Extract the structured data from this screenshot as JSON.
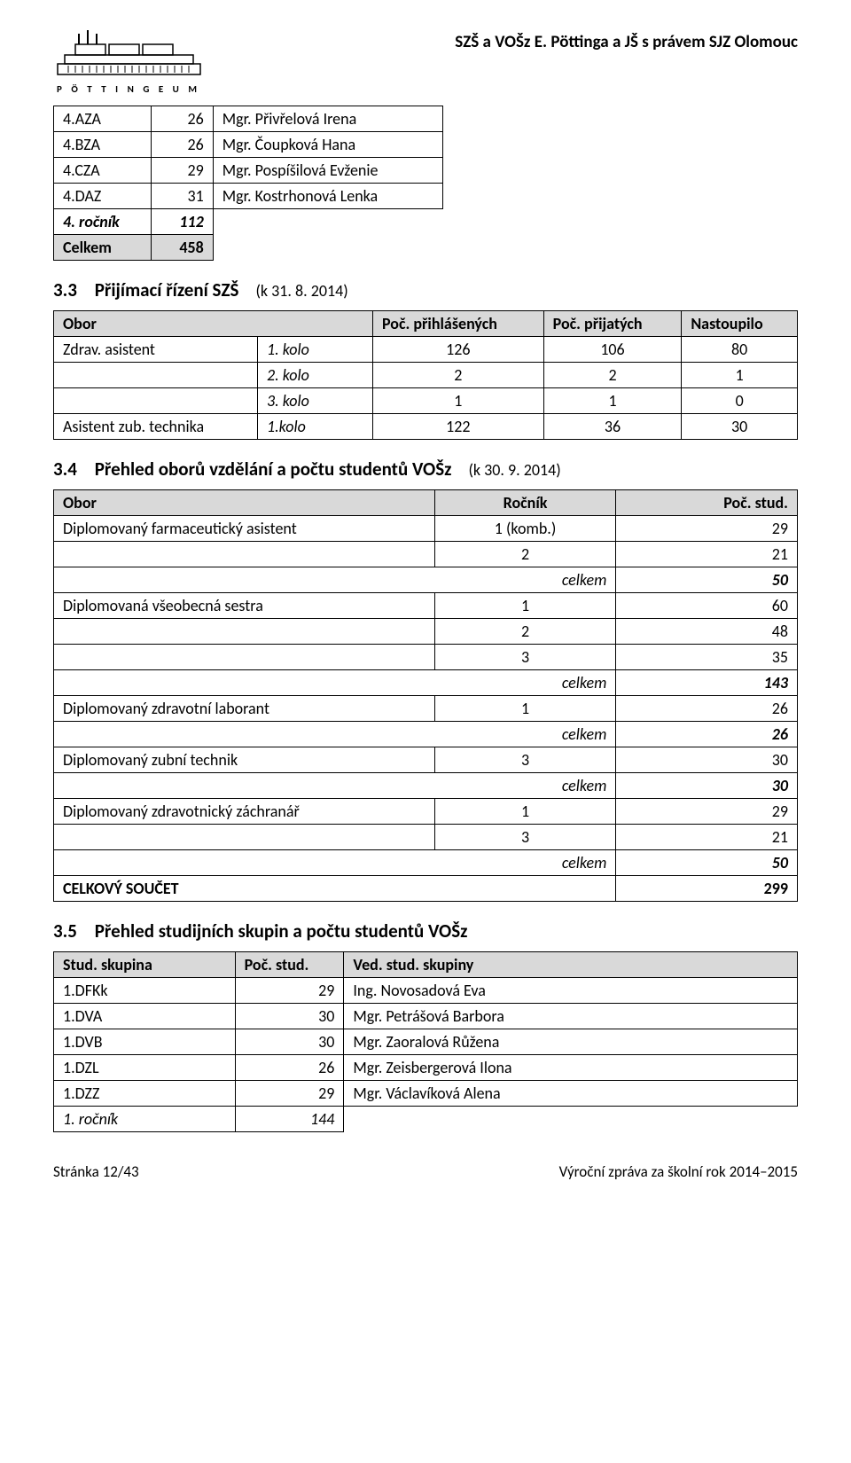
{
  "header": {
    "institution": "SZŠ a VOŠz E. Pöttinga a JŠ s právem SJZ Olomouc",
    "logo_caption": "P Ö T T I N G E U M"
  },
  "classes_table": {
    "rows": [
      {
        "code": "4.AZA",
        "n": "26",
        "teacher": "Mgr. Přivřelová Irena"
      },
      {
        "code": "4.BZA",
        "n": "26",
        "teacher": "Mgr. Čoupková Hana"
      },
      {
        "code": "4.CZA",
        "n": "29",
        "teacher": "Mgr. Pospíšilová Evženie"
      },
      {
        "code": "4.DAZ",
        "n": "31",
        "teacher": "Mgr. Kostrhonová Lenka"
      }
    ],
    "subtotal": {
      "label": "4. ročník",
      "n": "112"
    },
    "total": {
      "label": "Celkem",
      "n": "458"
    }
  },
  "section33": {
    "num": "3.3",
    "title": "Přijímací řízení SZŠ",
    "paren": "(k 31. 8. 2014)"
  },
  "admit": {
    "head": {
      "obor": "Obor",
      "prih": "Poč. přihlášených",
      "prij": "Poč. přijatých",
      "nast": "Nastoupilo"
    },
    "rows": [
      {
        "lbl": "Zdrav. asistent",
        "sub": "1. kolo",
        "a": "126",
        "b": "106",
        "c": "80"
      },
      {
        "lbl": "",
        "sub": "2. kolo",
        "a": "2",
        "b": "2",
        "c": "1"
      },
      {
        "lbl": "",
        "sub": "3. kolo",
        "a": "1",
        "b": "1",
        "c": "0"
      },
      {
        "lbl": "Asistent zub. technika",
        "sub": "1.kolo",
        "a": "122",
        "b": "36",
        "c": "30"
      }
    ]
  },
  "section34": {
    "num": "3.4",
    "title": "Přehled oborů vzdělání a počtu studentů VOŠz",
    "paren": "(k 30. 9. 2014)"
  },
  "obor": {
    "head": {
      "obor": "Obor",
      "rocnik": "Ročník",
      "stud": "Poč. stud."
    },
    "celkem_label": "celkem",
    "groups": [
      {
        "name": "Diplomovaný farmaceutický asistent",
        "rows": [
          {
            "r": "1 (komb.)",
            "s": "29"
          },
          {
            "r": "2",
            "s": "21"
          }
        ],
        "sum": "50"
      },
      {
        "name": "Diplomovaná všeobecná sestra",
        "rows": [
          {
            "r": "1",
            "s": "60"
          },
          {
            "r": "2",
            "s": "48"
          },
          {
            "r": "3",
            "s": "35"
          }
        ],
        "sum": "143"
      },
      {
        "name": "Diplomovaný zdravotní laborant",
        "rows": [
          {
            "r": "1",
            "s": "26"
          }
        ],
        "sum": "26"
      },
      {
        "name": "Diplomovaný zubní technik",
        "rows": [
          {
            "r": "3",
            "s": "30"
          }
        ],
        "sum": "30"
      },
      {
        "name": "Diplomovaný zdravotnický záchranář",
        "rows": [
          {
            "r": "1",
            "s": "29"
          },
          {
            "r": "3",
            "s": "21"
          }
        ],
        "sum": "50"
      }
    ],
    "total": {
      "label": "CELKOVÝ SOUČET",
      "val": "299"
    }
  },
  "section35": {
    "num": "3.5",
    "title": "Přehled studijních skupin a počtu studentů VOŠz"
  },
  "grp": {
    "head": {
      "a": "Stud. skupina",
      "b": "Poč. stud.",
      "c": "Ved. stud. skupiny"
    },
    "rows": [
      {
        "a": "1.DFKk",
        "b": "29",
        "c": "Ing. Novosadová Eva"
      },
      {
        "a": "1.DVA",
        "b": "30",
        "c": "Mgr. Petrášová Barbora"
      },
      {
        "a": "1.DVB",
        "b": "30",
        "c": "Mgr. Zaoralová Růžena"
      },
      {
        "a": "1.DZL",
        "b": "26",
        "c": "Mgr. Zeisbergerová Ilona"
      },
      {
        "a": "1.DZZ",
        "b": "29",
        "c": "Mgr. Václavíková Alena"
      }
    ],
    "sum": {
      "a": "1. ročník",
      "b": "144"
    }
  },
  "footer": {
    "left": "Stránka 12/43",
    "right": "Výroční zpráva za školní rok 2014–2015"
  }
}
